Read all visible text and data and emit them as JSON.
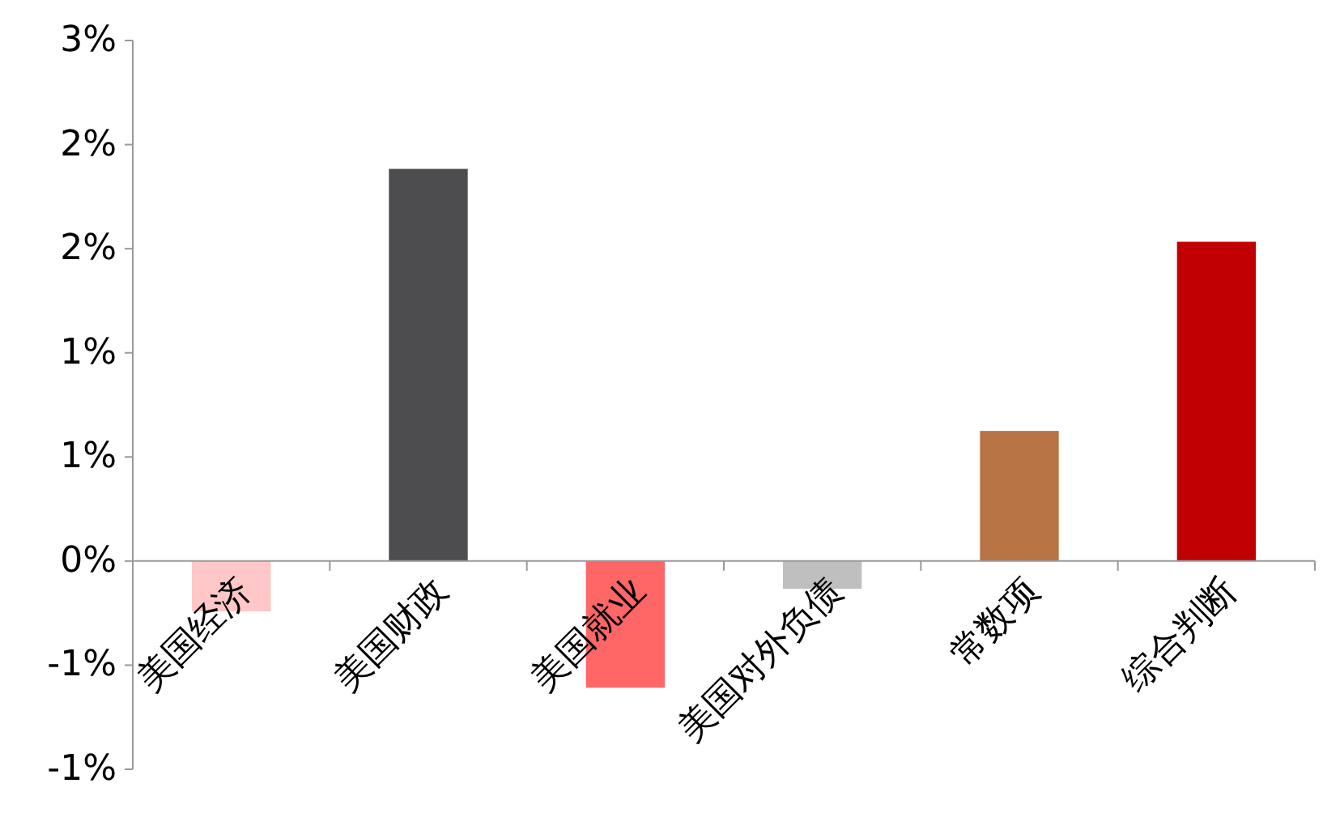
{
  "chart_data": {
    "type": "bar",
    "categories": [
      "美国经济",
      "美国财政",
      "美国就业",
      "美国对外负债",
      "常数项",
      "综合判断"
    ],
    "values": [
      -0.29,
      2.26,
      -0.73,
      -0.16,
      0.75,
      1.84
    ],
    "colors": [
      "#ffc7c7",
      "#4d4d4f",
      "#ff6666",
      "#bfbfbf",
      "#b87444",
      "#c00000"
    ],
    "ylim": [
      -1.2,
      3
    ],
    "yticks": [
      {
        "value": 3,
        "label": "3%"
      },
      {
        "value": 2.4,
        "label": "2%"
      },
      {
        "value": 1.8,
        "label": "2%"
      },
      {
        "value": 1.2,
        "label": "1%"
      },
      {
        "value": 0.6,
        "label": "1%"
      },
      {
        "value": 0,
        "label": "0%"
      },
      {
        "value": -0.6,
        "label": "-1%"
      },
      {
        "value": -1.2,
        "label": "-1%"
      }
    ],
    "grid": false
  }
}
